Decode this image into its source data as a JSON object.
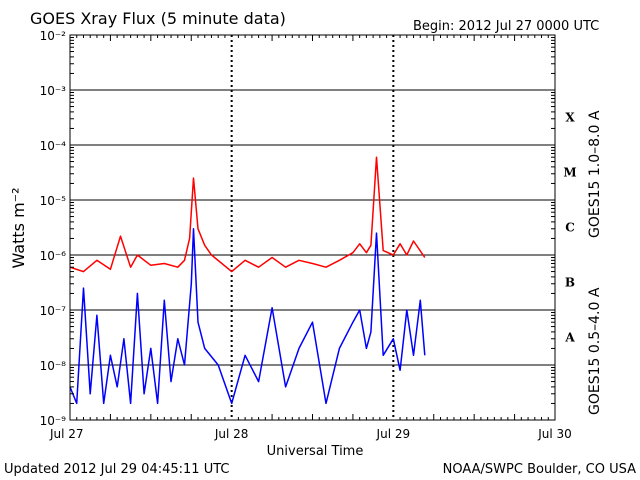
{
  "header": {
    "title": "GOES Xray Flux (5 minute data)",
    "begin": "Begin:  2012 Jul 27 0000 UTC"
  },
  "footer": {
    "updated": "Updated 2012 Jul 29 04:45:11 UTC",
    "source": "NOAA/SWPC Boulder, CO USA"
  },
  "colors": {
    "long_channel": "#ff0000",
    "short_channel": "#0000ff",
    "grid": "#000000"
  },
  "chart_data": {
    "type": "line",
    "title": "GOES Xray Flux (5 minute data)",
    "xlabel": "Universal Time",
    "ylabel": "Watts m⁻²",
    "y_scale": "log",
    "ylim": [
      1e-09,
      0.01
    ],
    "xlim": [
      "2012-07-27 00:00",
      "2012-07-30 00:00"
    ],
    "x_ticks": [
      "Jul 27",
      "Jul 28",
      "Jul 29",
      "Jul 30"
    ],
    "y_ticks": [
      "10⁻⁹",
      "10⁻⁸",
      "10⁻⁷",
      "10⁻⁶",
      "10⁻⁵",
      "10⁻⁴",
      "10⁻³",
      "10⁻²"
    ],
    "flare_classes": [
      {
        "label": "A",
        "flux": 1e-08
      },
      {
        "label": "B",
        "flux": 1e-07
      },
      {
        "label": "C",
        "flux": 1e-06
      },
      {
        "label": "M",
        "flux": 1e-05
      },
      {
        "label": "X",
        "flux": 0.0001
      }
    ],
    "grid": true,
    "series": [
      {
        "name": "GOES15 1.0–8.0 A",
        "color": "#ff0000",
        "x": [
          "2012-07-27 00:00",
          "2012-07-27 02:00",
          "2012-07-27 04:00",
          "2012-07-27 06:00",
          "2012-07-27 07:30",
          "2012-07-27 09:00",
          "2012-07-27 10:00",
          "2012-07-27 12:00",
          "2012-07-27 14:00",
          "2012-07-27 16:00",
          "2012-07-27 17:00",
          "2012-07-27 17:45",
          "2012-07-27 18:20",
          "2012-07-27 19:00",
          "2012-07-27 20:00",
          "2012-07-27 21:00",
          "2012-07-28 00:00",
          "2012-07-28 02:00",
          "2012-07-28 04:00",
          "2012-07-28 06:00",
          "2012-07-28 08:00",
          "2012-07-28 10:00",
          "2012-07-28 12:00",
          "2012-07-28 14:00",
          "2012-07-28 16:00",
          "2012-07-28 18:00",
          "2012-07-28 19:00",
          "2012-07-28 20:00",
          "2012-07-28 20:40",
          "2012-07-28 21:30",
          "2012-07-28 22:30",
          "2012-07-29 00:00",
          "2012-07-29 01:00",
          "2012-07-29 02:00",
          "2012-07-29 03:00",
          "2012-07-29 04:40"
        ],
        "y": [
          6e-07,
          5e-07,
          8e-07,
          5.5e-07,
          2.2e-06,
          6e-07,
          1e-06,
          6.5e-07,
          7e-07,
          6e-07,
          8e-07,
          2e-06,
          2.5e-05,
          3e-06,
          1.5e-06,
          1e-06,
          5e-07,
          8e-07,
          6e-07,
          9e-07,
          6e-07,
          8e-07,
          7e-07,
          6e-07,
          8e-07,
          1.1e-06,
          1.6e-06,
          1.1e-06,
          1.5e-06,
          6e-05,
          1.2e-06,
          1e-06,
          1.6e-06,
          1e-06,
          1.8e-06,
          9e-07
        ]
      },
      {
        "name": "GOES15 0.5–4.0 A",
        "color": "#0000ff",
        "x": [
          "2012-07-27 00:00",
          "2012-07-27 01:00",
          "2012-07-27 02:00",
          "2012-07-27 03:00",
          "2012-07-27 04:00",
          "2012-07-27 05:00",
          "2012-07-27 06:00",
          "2012-07-27 07:00",
          "2012-07-27 08:00",
          "2012-07-27 09:00",
          "2012-07-27 10:00",
          "2012-07-27 11:00",
          "2012-07-27 12:00",
          "2012-07-27 13:00",
          "2012-07-27 14:00",
          "2012-07-27 15:00",
          "2012-07-27 16:00",
          "2012-07-27 17:00",
          "2012-07-27 18:00",
          "2012-07-27 18:20",
          "2012-07-27 19:00",
          "2012-07-27 20:00",
          "2012-07-27 22:00",
          "2012-07-28 00:00",
          "2012-07-28 02:00",
          "2012-07-28 04:00",
          "2012-07-28 06:00",
          "2012-07-28 08:00",
          "2012-07-28 10:00",
          "2012-07-28 12:00",
          "2012-07-28 14:00",
          "2012-07-28 16:00",
          "2012-07-28 18:00",
          "2012-07-28 19:00",
          "2012-07-28 20:00",
          "2012-07-28 20:40",
          "2012-07-28 21:30",
          "2012-07-28 22:30",
          "2012-07-29 00:00",
          "2012-07-29 01:00",
          "2012-07-29 02:00",
          "2012-07-29 03:00",
          "2012-07-29 04:00",
          "2012-07-29 04:40"
        ],
        "y": [
          4e-09,
          2e-09,
          2.5e-07,
          3e-09,
          8e-08,
          2e-09,
          1.5e-08,
          4e-09,
          3e-08,
          2e-09,
          2e-07,
          3e-09,
          2e-08,
          2e-09,
          1.5e-07,
          5e-09,
          3e-08,
          1e-08,
          3e-07,
          3e-06,
          6e-08,
          2e-08,
          1e-08,
          2e-09,
          1.5e-08,
          5e-09,
          1.1e-07,
          4e-09,
          2e-08,
          6e-08,
          2e-09,
          2e-08,
          6e-08,
          1e-07,
          2e-08,
          4e-08,
          2.5e-06,
          1.5e-08,
          3e-08,
          8e-09,
          1e-07,
          1.5e-08,
          1.5e-07,
          1.5e-08
        ]
      }
    ]
  }
}
